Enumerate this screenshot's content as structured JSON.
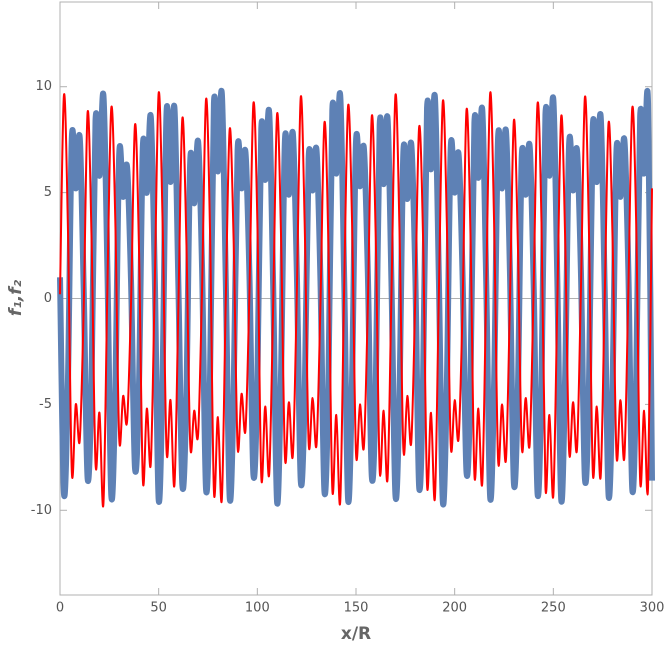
{
  "chart_data": {
    "type": "line",
    "x_label": "x/R",
    "y_label": "f₁,f₂",
    "x": [
      0,
      2,
      4,
      6,
      8,
      10,
      12,
      14,
      16,
      18,
      20,
      22,
      24,
      26,
      28,
      30,
      32,
      34,
      36,
      38,
      40,
      42,
      44,
      46,
      48,
      50,
      52,
      54,
      56,
      58,
      60,
      62,
      64,
      66,
      68,
      70,
      72,
      74,
      76,
      78,
      80,
      82,
      84,
      86,
      88,
      90,
      92,
      94,
      96,
      98,
      100,
      102,
      104,
      106,
      108,
      110,
      112,
      114,
      116,
      118,
      120,
      122,
      124,
      126,
      128,
      130,
      132,
      134,
      136,
      138,
      140,
      142,
      144,
      146,
      148,
      150,
      152,
      154,
      156,
      158,
      160,
      162,
      164,
      166,
      168,
      170,
      172,
      174,
      176,
      178,
      180,
      182,
      184,
      186,
      188,
      190,
      192,
      194,
      196,
      198,
      200,
      202,
      204,
      206,
      208,
      210,
      212,
      214,
      216,
      218,
      220,
      222,
      224,
      226,
      228,
      230,
      232,
      234,
      236,
      238,
      240,
      242,
      244,
      246,
      248,
      250,
      252,
      254,
      256,
      258,
      260,
      262,
      264,
      266,
      268,
      270,
      272,
      274,
      276,
      278,
      280,
      282,
      284,
      286,
      288,
      290,
      292,
      294,
      296,
      298,
      300
    ],
    "series": [
      {
        "name": "f1",
        "color": "#5e81b5",
        "values": [
          1.0,
          -9.2,
          -4.0,
          7.6,
          5.2,
          7.6,
          0.5,
          -8.5,
          -3.8,
          8.4,
          5.8,
          9.6,
          1.5,
          -9.3,
          -4.5,
          6.8,
          4.8,
          6.2,
          0.8,
          -8.0,
          -4.2,
          7.2,
          5.0,
          8.6,
          1.2,
          -9.5,
          -3.5,
          8.8,
          5.5,
          9.0,
          0.6,
          -8.8,
          -4.8,
          6.5,
          4.5,
          7.4,
          1.4,
          -9.0,
          -3.9,
          9.2,
          6.0,
          9.7,
          0.9,
          -9.4,
          -4.4,
          7.0,
          5.2,
          6.9,
          1.1,
          -8.3,
          -4.0,
          8.0,
          5.6,
          8.8,
          0.7,
          -9.6,
          -3.6,
          7.5,
          4.9,
          7.8,
          1.3,
          -8.6,
          -4.6,
          6.6,
          5.1,
          7.0,
          0.8,
          -9.1,
          -4.1,
          8.9,
          5.9,
          9.6,
          1.0,
          -9.5,
          -3.8,
          7.4,
          5.3,
          7.1,
          1.2,
          -8.4,
          -4.3,
          8.2,
          5.4,
          8.5,
          0.6,
          -9.3,
          -4.7,
          6.9,
          4.7,
          7.3,
          1.4,
          -8.9,
          -3.7,
          9.0,
          6.1,
          9.5,
          0.9,
          -9.6,
          -4.2,
          7.1,
          5.0,
          6.8,
          1.1,
          -8.2,
          -4.0,
          8.3,
          5.7,
          8.9,
          0.7,
          -9.4,
          -3.9,
          7.6,
          5.2,
          7.9,
          1.3,
          -8.7,
          -4.5,
          6.7,
          4.9,
          7.2,
          0.8,
          -9.2,
          -4.0,
          8.7,
          5.8,
          9.4,
          1.0,
          -9.5,
          -3.6,
          7.3,
          5.1,
          7.0,
          1.2,
          -8.5,
          -4.4,
          8.1,
          5.5,
          8.6,
          0.6,
          -9.3,
          -4.1,
          7.0,
          4.8,
          7.5,
          1.4,
          -9.0,
          -3.8,
          8.6,
          5.9,
          9.2,
          -8.6
        ]
      },
      {
        "name": "f2",
        "color": "#ff0000",
        "values": [
          0.2,
          9.6,
          3.4,
          -8.2,
          -5.0,
          -6.7,
          -0.5,
          8.8,
          2.8,
          -7.8,
          -5.4,
          -9.7,
          0.4,
          9.0,
          3.8,
          -6.6,
          -4.6,
          -5.8,
          -0.2,
          8.2,
          2.5,
          -8.6,
          -5.2,
          -7.8,
          0.6,
          9.7,
          3.6,
          -7.2,
          -4.8,
          -8.8,
          -0.3,
          8.5,
          2.9,
          -6.9,
          -5.3,
          -6.4,
          0.5,
          9.4,
          3.3,
          -9.1,
          -5.6,
          -9.5,
          -0.1,
          8.0,
          2.7,
          -7.0,
          -4.5,
          -6.2,
          0.3,
          9.2,
          3.7,
          -8.4,
          -5.1,
          -8.3,
          -0.4,
          8.7,
          3.0,
          -7.5,
          -4.9,
          -7.4,
          0.2,
          9.5,
          3.5,
          -6.8,
          -4.7,
          -6.9,
          -0.2,
          8.3,
          2.6,
          -9.0,
          -5.5,
          -9.6,
          0.5,
          9.1,
          3.6,
          -7.3,
          -5.0,
          -7.0,
          -0.3,
          8.6,
          2.9,
          -8.1,
          -5.3,
          -8.5,
          0.4,
          9.6,
          3.4,
          -7.1,
          -4.6,
          -6.8,
          -0.1,
          8.1,
          2.8,
          -8.8,
          -5.4,
          -9.4,
          0.3,
          9.3,
          3.7,
          -6.9,
          -4.8,
          -6.6,
          -0.4,
          8.9,
          3.1,
          -8.3,
          -5.2,
          -8.7,
          0.6,
          9.7,
          3.5,
          -7.6,
          -5.0,
          -7.6,
          -0.2,
          8.4,
          2.7,
          -7.0,
          -4.7,
          -6.9,
          0.4,
          9.2,
          3.6,
          -8.9,
          -5.5,
          -9.3,
          -0.3,
          8.6,
          2.8,
          -7.2,
          -4.9,
          -7.1,
          0.5,
          9.5,
          3.4,
          -8.2,
          -5.1,
          -8.4,
          -0.1,
          8.3,
          2.9,
          -7.4,
          -4.8,
          -7.5,
          0.3,
          9.0,
          3.5,
          -8.6,
          -5.3,
          -8.9,
          5.2
        ]
      }
    ],
    "xlim": [
      0,
      300
    ],
    "xticks": [
      0,
      50,
      100,
      150,
      200,
      250,
      300
    ],
    "ylim": [
      -14,
      14
    ],
    "yticks": [
      -10,
      -5,
      0,
      5,
      10
    ]
  }
}
